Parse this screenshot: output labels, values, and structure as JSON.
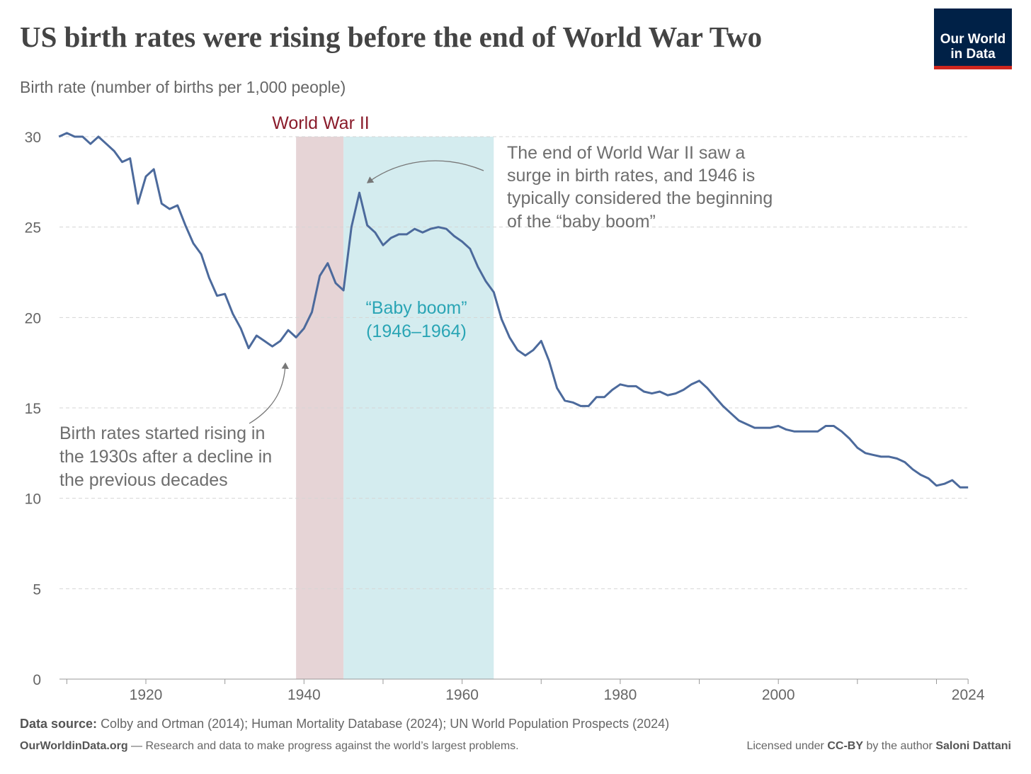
{
  "title": "US birth rates were rising before the end of World War Two",
  "subtitle": "Birth rate (number of births per 1,000 people)",
  "logo": {
    "line1": "Our World",
    "line2": "in Data"
  },
  "footer": {
    "source_label": "Data source:",
    "source": "Colby and Ortman (2014); Human Mortality Database (2024); UN World Population Prospects (2024)",
    "site": "OurWorldinData.org",
    "tagline": "— Research and data to make progress against the world’s largest problems.",
    "license_pre": "Licensed under",
    "license": "CC-BY",
    "license_mid": "by the author",
    "author": "Saloni Dattani"
  },
  "colors": {
    "line": "#4c6a9c",
    "ww2_band": "#e6d4d6",
    "ww2_text": "#8a1c2b",
    "boom_band": "#d4ecef",
    "boom_text": "#2aa5b5",
    "logo_bg": "#002147",
    "logo_bar": "#ce261e"
  },
  "chart_data": {
    "type": "line",
    "title": "US birth rates were rising before the end of World War Two",
    "ylabel": "Birth rate (number of births per 1,000 people)",
    "xlim": [
      1909,
      2024
    ],
    "ylim": [
      0,
      30
    ],
    "yticks": [
      0,
      5,
      10,
      15,
      20,
      25,
      30
    ],
    "xticks": [
      1920,
      1940,
      1960,
      1980,
      2000,
      2024
    ],
    "grid": "horizontal dashed",
    "x_start": 1909,
    "values": [
      30.0,
      30.2,
      30.0,
      30.0,
      29.6,
      30.0,
      29.6,
      29.2,
      28.6,
      28.8,
      26.3,
      27.8,
      28.2,
      26.3,
      26.0,
      26.2,
      25.1,
      24.1,
      23.5,
      22.2,
      21.2,
      21.3,
      20.2,
      19.4,
      18.3,
      19.0,
      18.7,
      18.4,
      18.7,
      19.3,
      18.9,
      19.4,
      20.3,
      22.3,
      23.0,
      21.9,
      21.5,
      25.0,
      26.9,
      25.1,
      24.7,
      24.0,
      24.4,
      24.6,
      24.6,
      24.9,
      24.7,
      24.9,
      25.0,
      24.9,
      24.5,
      24.2,
      23.8,
      22.8,
      22.0,
      21.4,
      19.9,
      18.9,
      18.2,
      17.9,
      18.2,
      18.7,
      17.6,
      16.1,
      15.4,
      15.3,
      15.1,
      15.1,
      15.6,
      15.6,
      16.0,
      16.3,
      16.2,
      16.2,
      15.9,
      15.8,
      15.9,
      15.7,
      15.8,
      16.0,
      16.3,
      16.5,
      16.1,
      15.6,
      15.1,
      14.7,
      14.3,
      14.1,
      13.9,
      13.9,
      13.9,
      14.0,
      13.8,
      13.7,
      13.7,
      13.7,
      13.7,
      14.0,
      14.0,
      13.7,
      13.3,
      12.8,
      12.5,
      12.4,
      12.3,
      12.3,
      12.2,
      12.0,
      11.6,
      11.3,
      11.1,
      10.7,
      10.8,
      11.0,
      10.6,
      10.6
    ],
    "bands": [
      {
        "label": "World War II",
        "from": 1939,
        "to": 1945
      },
      {
        "label_line1": "“Baby boom”",
        "label_line2": "(1946–1964)",
        "from": 1945,
        "to": 1964
      }
    ],
    "annotations": {
      "right": [
        "The end of World War II saw a",
        "surge in birth rates, and 1946 is",
        "typically considered the beginning",
        "of the “baby boom”"
      ],
      "left": [
        "Birth rates started rising in",
        "the 1930s after a decline in",
        "the previous decades"
      ]
    }
  }
}
